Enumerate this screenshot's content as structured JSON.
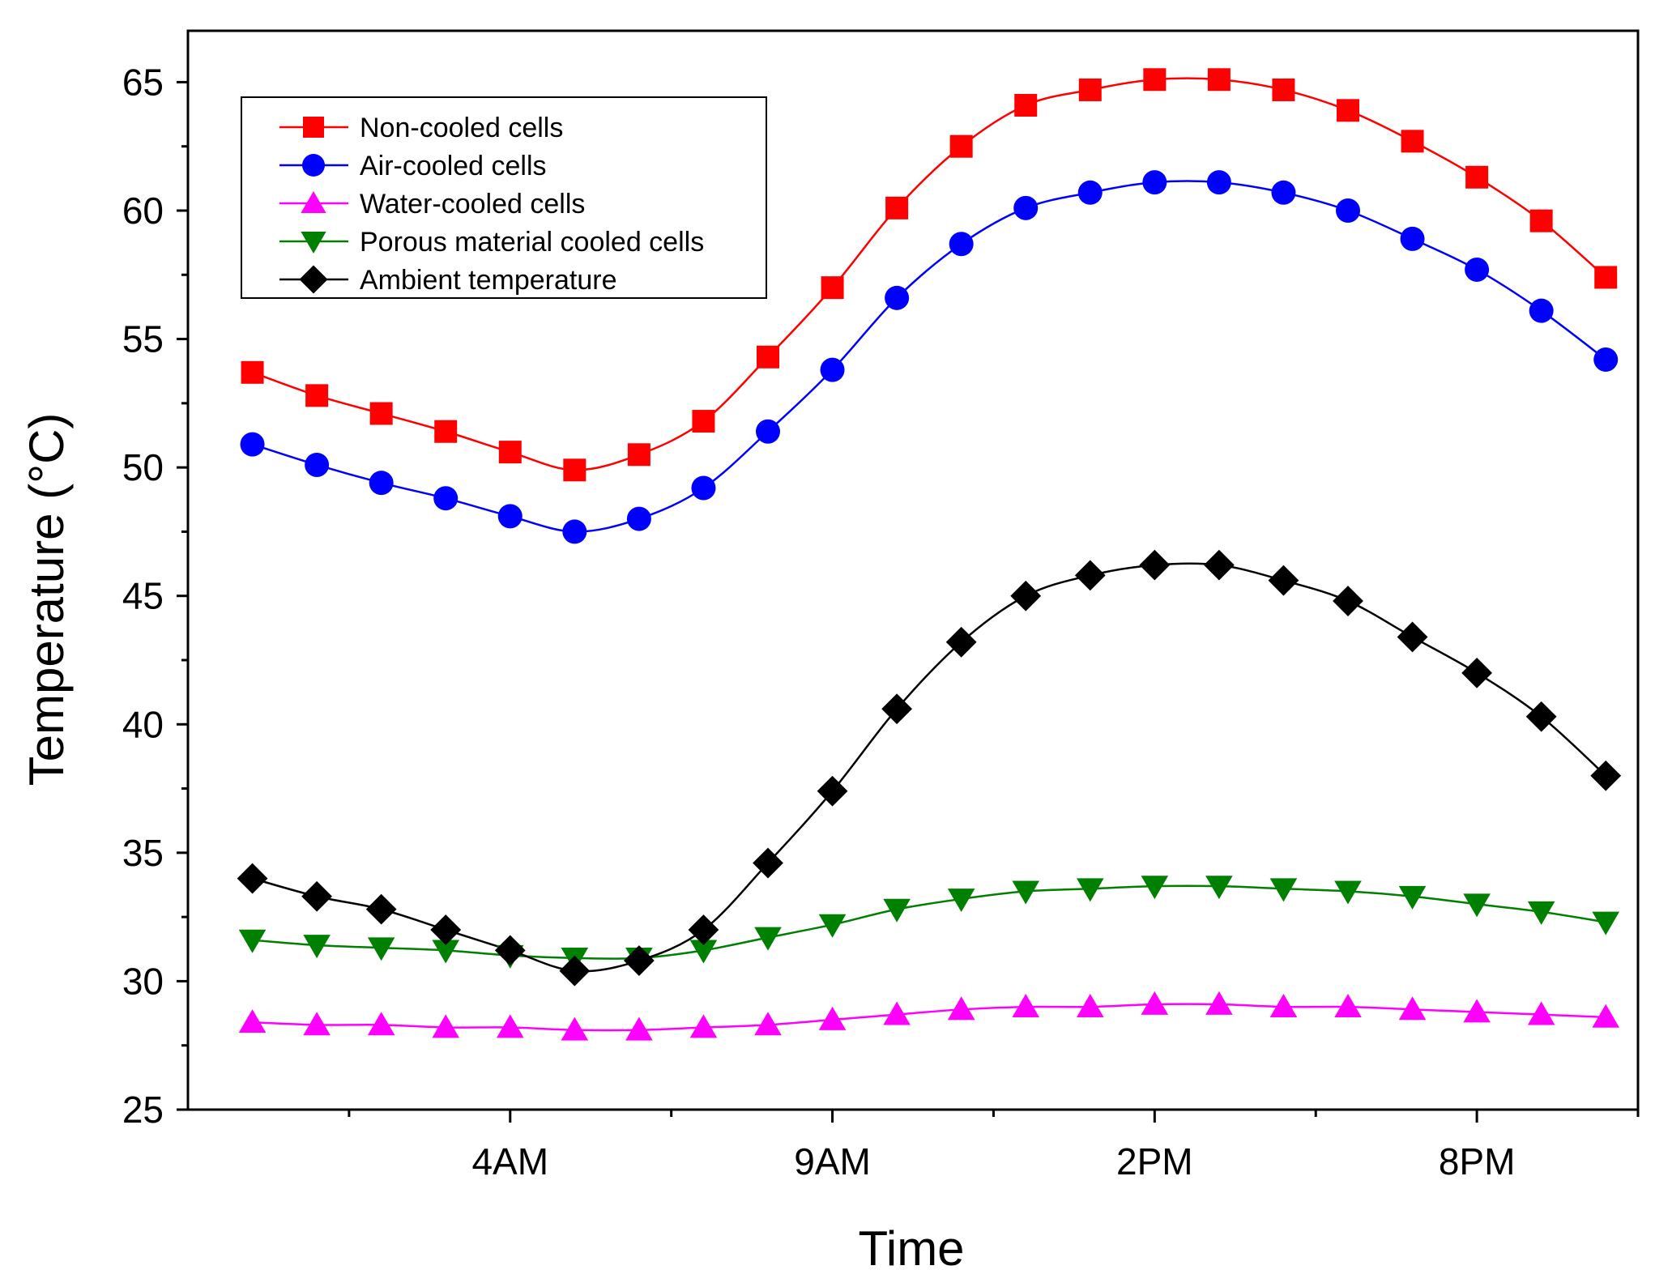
{
  "chart_data": {
    "type": "line",
    "title": "",
    "xlabel": "Time",
    "ylabel": "Temperature (°C)",
    "ylim": [
      25,
      67
    ],
    "yticks": [
      25,
      30,
      35,
      40,
      45,
      50,
      55,
      60,
      65
    ],
    "xlim": [
      0,
      22.5
    ],
    "xticks_major": [
      5,
      10,
      15,
      20
    ],
    "xtick_labels": [
      "4AM",
      "9AM",
      "2PM",
      "8PM"
    ],
    "xticks_minor": [
      2.5,
      7.5,
      12.5,
      17.5,
      22.5
    ],
    "x": [
      1,
      2,
      3,
      4,
      5,
      6,
      7,
      8,
      9,
      10,
      11,
      12,
      13,
      14,
      15,
      16,
      17,
      18,
      19,
      20,
      21,
      22
    ],
    "grid": false,
    "legend_position": "top-left",
    "series": [
      {
        "name": "Non-cooled cells",
        "color": "#ff0000",
        "marker": "square",
        "values": [
          53.7,
          52.8,
          52.1,
          51.4,
          50.6,
          49.9,
          50.5,
          51.8,
          54.3,
          57.0,
          60.1,
          62.5,
          64.1,
          64.7,
          65.1,
          65.1,
          64.7,
          63.9,
          62.7,
          61.3,
          59.6,
          57.4
        ]
      },
      {
        "name": "Air-cooled cells",
        "color": "#0000ff",
        "marker": "circle",
        "values": [
          50.9,
          50.1,
          49.4,
          48.8,
          48.1,
          47.5,
          48.0,
          49.2,
          51.4,
          53.8,
          56.6,
          58.7,
          60.1,
          60.7,
          61.1,
          61.1,
          60.7,
          60.0,
          58.9,
          57.7,
          56.1,
          54.2
        ]
      },
      {
        "name": "Water-cooled cells",
        "color": "#ff00ff",
        "marker": "triangle-up",
        "values": [
          28.4,
          28.3,
          28.3,
          28.2,
          28.2,
          28.1,
          28.1,
          28.2,
          28.3,
          28.5,
          28.7,
          28.9,
          29.0,
          29.0,
          29.1,
          29.1,
          29.0,
          29.0,
          28.9,
          28.8,
          28.7,
          28.6
        ]
      },
      {
        "name": "Porous material cooled cells",
        "color": "#008000",
        "marker": "triangle-down",
        "values": [
          31.6,
          31.4,
          31.3,
          31.2,
          31.0,
          30.9,
          30.9,
          31.2,
          31.7,
          32.2,
          32.8,
          33.2,
          33.5,
          33.6,
          33.7,
          33.7,
          33.6,
          33.5,
          33.3,
          33.0,
          32.7,
          32.3
        ]
      },
      {
        "name": "Ambient temperature",
        "color": "#000000",
        "marker": "diamond",
        "values": [
          34.0,
          33.3,
          32.8,
          32.0,
          31.2,
          30.4,
          30.8,
          32.0,
          34.6,
          37.4,
          40.6,
          43.2,
          45.0,
          45.8,
          46.2,
          46.2,
          45.6,
          44.8,
          43.4,
          42.0,
          40.3,
          38.0
        ]
      }
    ]
  }
}
